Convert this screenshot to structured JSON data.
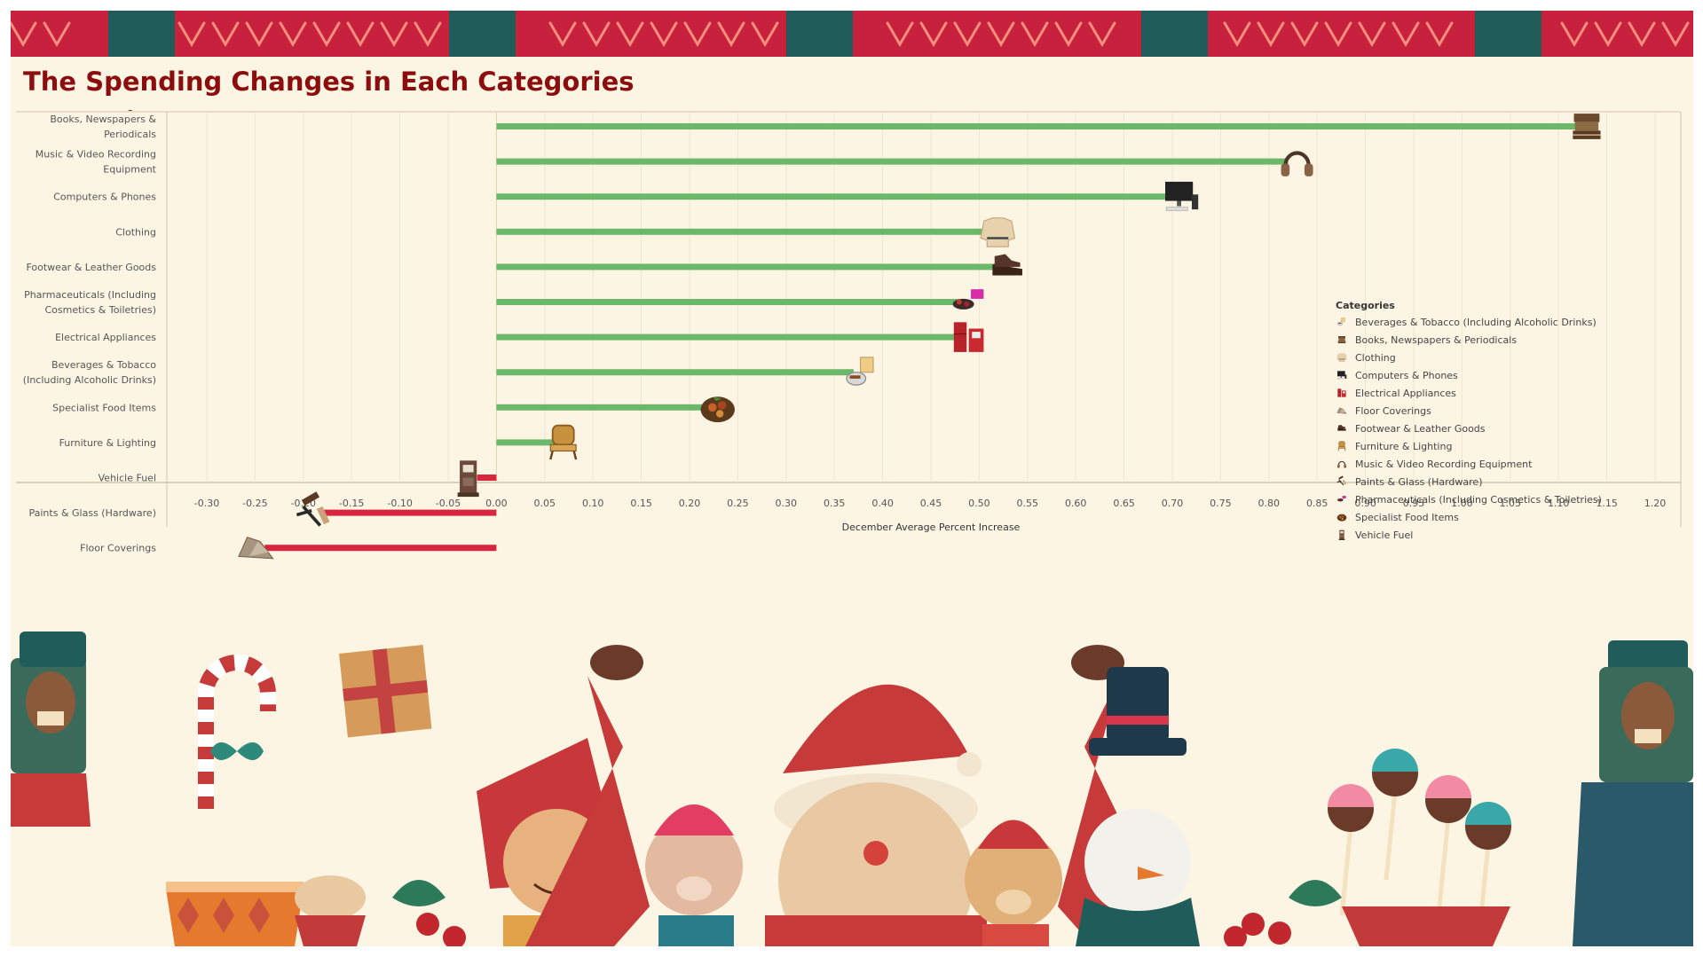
{
  "dashboard": {
    "title": "The Spending Changes in Each Categories"
  },
  "chart_data": {
    "type": "bar",
    "orientation": "horizontal",
    "row_header": "Categories",
    "xlabel": "December Average Percent Increase",
    "xlim": [
      -0.33,
      1.22
    ],
    "x_ticks": [
      "-0.30",
      "-0.25",
      "-0.20",
      "-0.15",
      "-0.10",
      "-0.05",
      "0.00",
      "0.05",
      "0.10",
      "0.15",
      "0.20",
      "0.25",
      "0.30",
      "0.35",
      "0.40",
      "0.45",
      "0.50",
      "0.55",
      "0.60",
      "0.65",
      "0.70",
      "0.75",
      "0.80",
      "0.85",
      "0.90",
      "0.95",
      "1.00",
      "1.05",
      "1.10",
      "1.15",
      "1.20"
    ],
    "grid": true,
    "legend_position": "right",
    "colors": {
      "positive": "#6bb86a",
      "negative": "#d7263d"
    },
    "categories": [
      [
        "Books, Newspapers &",
        "Periodicals"
      ],
      [
        "Music & Video Recording",
        "Equipment"
      ],
      [
        "Computers & Phones"
      ],
      [
        "Clothing"
      ],
      [
        "Footwear & Leather Goods"
      ],
      [
        "Pharmaceuticals (Including",
        "Cosmetics & Toiletries)"
      ],
      [
        "Electrical Appliances"
      ],
      [
        "Beverages & Tobacco",
        "(Including Alcoholic Drinks)"
      ],
      [
        "Specialist Food Items"
      ],
      [
        "Furniture & Lighting"
      ],
      [
        "Vehicle Fuel"
      ],
      [
        "Paints & Glass (Hardware)"
      ],
      [
        "Floor Coverings"
      ]
    ],
    "values": [
      1.12,
      0.82,
      0.7,
      0.51,
      0.52,
      0.48,
      0.48,
      0.37,
      0.22,
      0.06,
      -0.02,
      -0.18,
      -0.24
    ],
    "icons": [
      "books-icon",
      "headphones-icon",
      "computer-icon",
      "sweater-icon",
      "shoe-icon",
      "cosmetics-icon",
      "fridge-icon",
      "whisky-icon",
      "food-plate-icon",
      "armchair-icon",
      "fuel-pump-icon",
      "paint-brush-icon",
      "rug-icon"
    ],
    "legend": {
      "title": "Categories",
      "items": [
        "Beverages & Tobacco (Including Alcoholic Drinks)",
        "Books, Newspapers & Periodicals",
        "Clothing",
        "Computers & Phones",
        "Electrical Appliances",
        "Floor Coverings",
        "Footwear & Leather Goods",
        "Furniture & Lighting",
        "Music & Video Recording Equipment",
        "Paints & Glass (Hardware)",
        "Pharmaceuticals (Including Cosmetics & Toiletries)",
        "Specialist Food Items",
        "Vehicle Fuel"
      ],
      "icons": [
        "whisky-icon",
        "books-icon",
        "sweater-icon",
        "computer-icon",
        "fridge-icon",
        "rug-icon",
        "shoe-icon",
        "armchair-icon",
        "headphones-icon",
        "paint-brush-icon",
        "cosmetics-icon",
        "food-plate-icon",
        "fuel-pump-icon"
      ]
    }
  },
  "decor": {
    "banner_colors": [
      "#c8213d",
      "#1f5c5a",
      "#f48f7e"
    ],
    "scene_colors": [
      "#c63b3a",
      "#e8c9a4",
      "#1f5c5a",
      "#6b3b2a",
      "#2b8a8a"
    ]
  }
}
